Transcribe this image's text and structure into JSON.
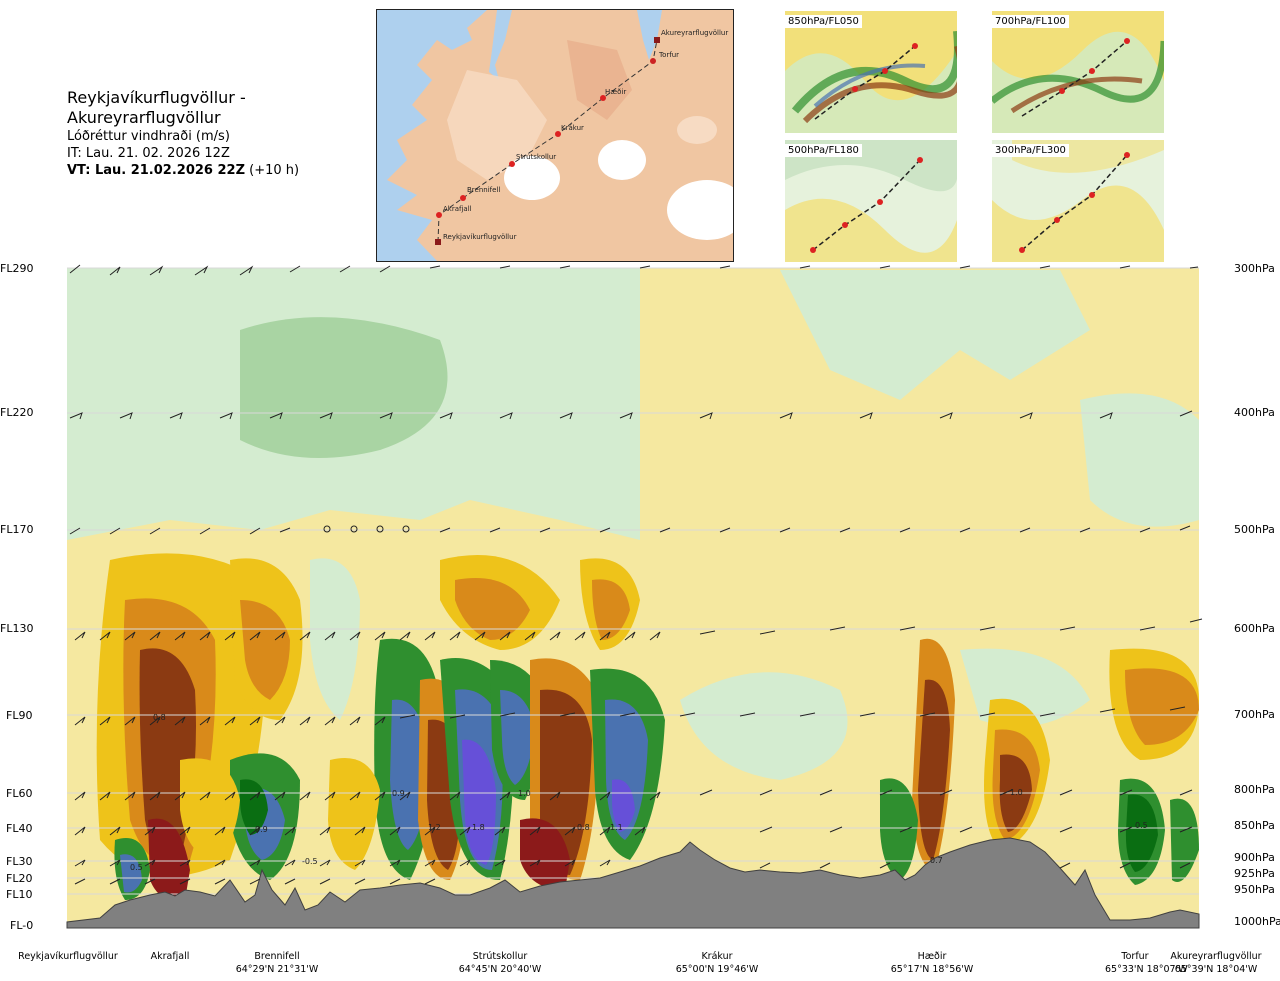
{
  "header": {
    "route": "Reykjavíkurflugvöllur - Akureyrarflugvöllur",
    "variable": "Lóðréttur vindhraði (m/s)",
    "issued": "IT: Lau. 21. 02. 2026 12Z",
    "valid_bold": "VT: Lau. 21.02.2026 22Z",
    "valid_lead": "(+10 h)"
  },
  "map": {
    "stations": [
      "Akureyrarflugvöllur",
      "Torfur",
      "Hæðir",
      "Krákur",
      "Strútskollur",
      "Brennifell",
      "Akrafjall",
      "Reykjavíkurflugvöllur"
    ]
  },
  "mini_maps": [
    {
      "label": "850hPa/FL050"
    },
    {
      "label": "700hPa/FL100"
    },
    {
      "label": "500hPa/FL180"
    },
    {
      "label": "300hPa/FL300"
    }
  ],
  "colors": {
    "strong_up": "#8c1a1a",
    "up3": "#8b3a12",
    "up2": "#d98a1a",
    "up1": "#eec31a",
    "weak_up": "#f5e8a0",
    "weak_down": "#d4ecd0",
    "down1": "#9fcf9a",
    "down2": "#2f8f2f",
    "down3": "#0a6e12",
    "strong_down": "#4a72b0",
    "extreme_down": "#6650d8",
    "terrain": "#808080"
  },
  "chart_data": {
    "type": "heatmap",
    "x_type": "cross-section distance along route",
    "left_axis_labels": [
      "FL290",
      "FL220",
      "FL170",
      "FL130",
      "FL90",
      "FL60",
      "FL40",
      "FL30",
      "FL20",
      "FL10",
      "FL-0"
    ],
    "right_axis_labels": [
      "300hPa",
      "400hPa",
      "500hPa",
      "600hPa",
      "700hPa",
      "800hPa",
      "850hPa",
      "900hPa",
      "925hPa",
      "950hPa",
      "1000hPa"
    ],
    "locations": [
      {
        "name": "Reykjavíkurflugvöllur",
        "coord": ""
      },
      {
        "name": "Akrafjall",
        "coord": ""
      },
      {
        "name": "Brennifell",
        "coord": "64°29'N 21°31'W"
      },
      {
        "name": "Strútskollur",
        "coord": "64°45'N 20°40'W"
      },
      {
        "name": "Krákur",
        "coord": "65°00'N 19°46'W"
      },
      {
        "name": "Hæðir",
        "coord": "65°17'N 18°56'W"
      },
      {
        "name": "Torfur",
        "coord": "65°33'N 18°07'W"
      },
      {
        "name": "Akureyrarflugvöllur",
        "coord": "65°39'N 18°04'W"
      }
    ],
    "annotations": [
      "0.5",
      "0.8",
      "0.9",
      "-0.5",
      "0.9",
      "1.2",
      "1.8",
      "1.0",
      "0.8",
      "1.1",
      "0.7",
      "1.0",
      "0.5"
    ]
  }
}
